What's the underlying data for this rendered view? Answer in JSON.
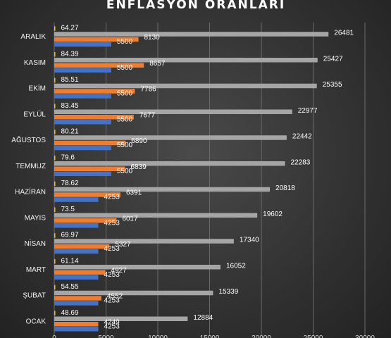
{
  "chart_data": {
    "type": "bar",
    "orientation": "horizontal",
    "title": "ENFLASYON ORANLARI",
    "categories": [
      "ARALIK",
      "KASIM",
      "EKİM",
      "EYLÜL",
      "AĞUSTOS",
      "TEMMUZ",
      "HAZİRAN",
      "MAYIS",
      "NİSAN",
      "MART",
      "ŞUBAT",
      "OCAK"
    ],
    "series": [
      {
        "color": "#ffc000",
        "values": [
          64.27,
          84.39,
          85.51,
          83.45,
          80.21,
          79.6,
          78.62,
          73.5,
          69.97,
          61.14,
          54.55,
          48.69
        ]
      },
      {
        "color": "#a5a5a5",
        "values": [
          26481,
          25427,
          25355,
          22977,
          22442,
          22283,
          20818,
          19602,
          17340,
          16052,
          15339,
          12884
        ]
      },
      {
        "color": "#ed7d31",
        "values": [
          8130,
          8657,
          7786,
          7677,
          6890,
          6839,
          6391,
          6017,
          5327,
          4927,
          4552,
          4249
        ]
      },
      {
        "color": "#4472c4",
        "values": [
          5500,
          5500,
          5500,
          5500,
          5500,
          5500,
          4253,
          4253,
          4253,
          4253,
          4253,
          4253
        ]
      }
    ],
    "xlim": [
      0,
      30000
    ],
    "xticks": [
      "0",
      "5000",
      "10000",
      "15000",
      "20000",
      "25000",
      "30000"
    ],
    "grid": true,
    "legend": "none"
  }
}
